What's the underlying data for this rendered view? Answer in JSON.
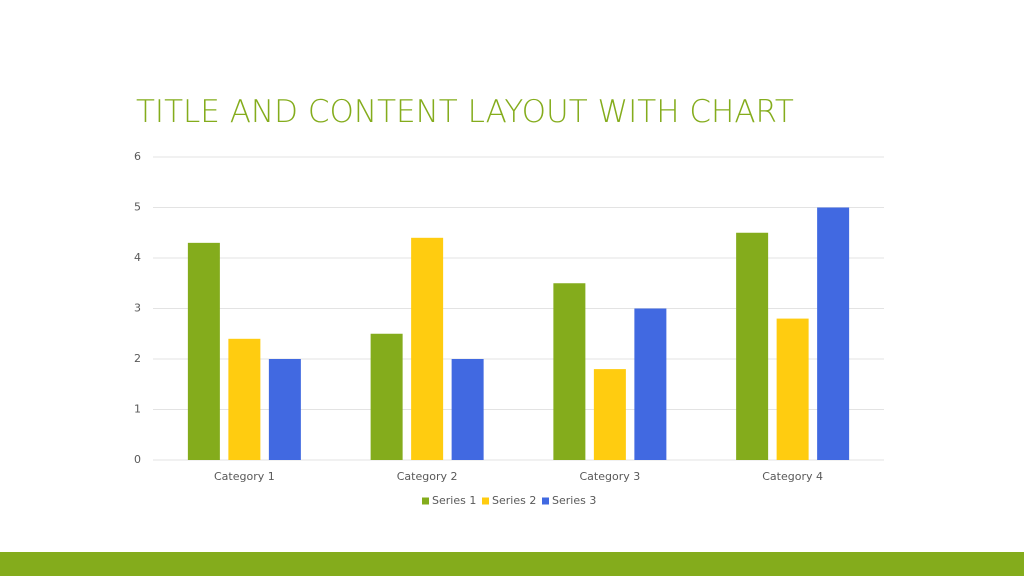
{
  "chart_data": {
    "type": "bar",
    "title": "TITLE AND CONTENT LAYOUT WITH CHART",
    "categories": [
      "Category 1",
      "Category 2",
      "Category 3",
      "Category 4"
    ],
    "series": [
      {
        "name": "Series 1",
        "color": "#84ac1c",
        "values": [
          4.3,
          2.5,
          3.5,
          4.5
        ]
      },
      {
        "name": "Series 2",
        "color": "#ffcc10",
        "values": [
          2.4,
          4.4,
          1.8,
          2.8
        ]
      },
      {
        "name": "Series 3",
        "color": "#4169e1",
        "values": [
          2,
          2,
          3,
          5
        ]
      }
    ],
    "ylim": [
      0,
      6
    ],
    "yticks": [
      0,
      1,
      2,
      3,
      4,
      5,
      6
    ],
    "grid": true,
    "legend": "bottom"
  }
}
